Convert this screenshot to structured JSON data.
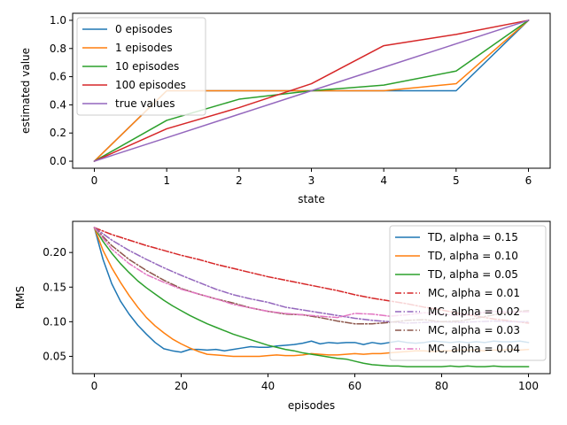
{
  "chart_data": [
    {
      "type": "line",
      "title": "",
      "xlabel": "state",
      "ylabel": "estimated value",
      "xlim": [
        -0.3,
        6.3
      ],
      "ylim": [
        -0.05,
        1.05
      ],
      "xticks": [
        0,
        1,
        2,
        3,
        4,
        5,
        6
      ],
      "xtick_labels": [
        "0",
        "1",
        "2",
        "3",
        "4",
        "5",
        "6"
      ],
      "yticks": [
        0.0,
        0.2,
        0.4,
        0.6,
        0.8,
        1.0
      ],
      "ytick_labels": [
        "0.0",
        "0.2",
        "0.4",
        "0.6",
        "0.8",
        "1.0"
      ],
      "legend_position": "top-left",
      "series": [
        {
          "name": "0 episodes",
          "color": "#1f77b4",
          "dash": "",
          "x": [
            0,
            1,
            2,
            3,
            4,
            5,
            6
          ],
          "y": [
            0,
            0.5,
            0.5,
            0.5,
            0.5,
            0.5,
            1
          ]
        },
        {
          "name": "1 episodes",
          "color": "#ff7f0e",
          "dash": "",
          "x": [
            0,
            1,
            2,
            3,
            4,
            5,
            6
          ],
          "y": [
            0,
            0.5,
            0.5,
            0.5,
            0.5,
            0.55,
            1
          ]
        },
        {
          "name": "10 episodes",
          "color": "#2ca02c",
          "dash": "",
          "x": [
            0,
            1,
            2,
            3,
            4,
            5,
            6
          ],
          "y": [
            0,
            0.29,
            0.44,
            0.5,
            0.54,
            0.64,
            1
          ]
        },
        {
          "name": "100 episodes",
          "color": "#d62728",
          "dash": "",
          "x": [
            0,
            1,
            2,
            3,
            4,
            5,
            6
          ],
          "y": [
            0,
            0.23,
            0.38,
            0.55,
            0.82,
            0.9,
            1
          ]
        },
        {
          "name": "true values",
          "color": "#9467bd",
          "dash": "",
          "x": [
            0,
            1,
            2,
            3,
            4,
            5,
            6
          ],
          "y": [
            0,
            0.1667,
            0.3333,
            0.5,
            0.6667,
            0.8333,
            1
          ]
        }
      ]
    },
    {
      "type": "line",
      "title": "",
      "xlabel": "episodes",
      "ylabel": "RMS",
      "xlim": [
        -5,
        105
      ],
      "ylim": [
        0.025,
        0.245
      ],
      "xticks": [
        0,
        20,
        40,
        60,
        80,
        100
      ],
      "xtick_labels": [
        "0",
        "20",
        "40",
        "60",
        "80",
        "100"
      ],
      "yticks": [
        0.05,
        0.1,
        0.15,
        0.2
      ],
      "ytick_labels": [
        "0.05",
        "0.10",
        "0.15",
        "0.20"
      ],
      "legend_position": "top-right",
      "series": [
        {
          "name": "TD, alpha = 0.15",
          "color": "#1f77b4",
          "dash": "",
          "x": [
            0,
            2,
            4,
            6,
            8,
            10,
            12,
            14,
            16,
            18,
            20,
            22,
            24,
            26,
            28,
            30,
            32,
            34,
            36,
            38,
            40,
            42,
            44,
            46,
            48,
            50,
            52,
            54,
            56,
            58,
            60,
            62,
            64,
            66,
            68,
            70,
            72,
            74,
            76,
            78,
            80,
            82,
            84,
            86,
            88,
            90,
            92,
            94,
            96,
            98,
            100
          ],
          "y": [
            0.236,
            0.19,
            0.155,
            0.13,
            0.111,
            0.095,
            0.082,
            0.07,
            0.061,
            0.058,
            0.056,
            0.06,
            0.06,
            0.059,
            0.06,
            0.058,
            0.06,
            0.062,
            0.064,
            0.063,
            0.063,
            0.065,
            0.066,
            0.067,
            0.069,
            0.072,
            0.068,
            0.07,
            0.069,
            0.07,
            0.07,
            0.067,
            0.07,
            0.068,
            0.07,
            0.072,
            0.07,
            0.069,
            0.07,
            0.072,
            0.071,
            0.07,
            0.071,
            0.07,
            0.071,
            0.07,
            0.072,
            0.071,
            0.071,
            0.072,
            0.07
          ]
        },
        {
          "name": "TD, alpha = 0.10",
          "color": "#ff7f0e",
          "dash": "",
          "x": [
            0,
            2,
            4,
            6,
            8,
            10,
            12,
            14,
            16,
            18,
            20,
            22,
            24,
            26,
            28,
            30,
            32,
            34,
            36,
            38,
            40,
            42,
            44,
            46,
            48,
            50,
            52,
            54,
            56,
            58,
            60,
            62,
            64,
            66,
            68,
            70,
            72,
            74,
            76,
            78,
            80,
            82,
            84,
            86,
            88,
            90,
            92,
            94,
            96,
            98,
            100
          ],
          "y": [
            0.236,
            0.203,
            0.178,
            0.157,
            0.138,
            0.121,
            0.106,
            0.094,
            0.084,
            0.075,
            0.068,
            0.062,
            0.057,
            0.053,
            0.052,
            0.051,
            0.05,
            0.05,
            0.05,
            0.05,
            0.051,
            0.052,
            0.051,
            0.051,
            0.052,
            0.054,
            0.053,
            0.052,
            0.052,
            0.053,
            0.054,
            0.053,
            0.054,
            0.054,
            0.055,
            0.056,
            0.057,
            0.058,
            0.058,
            0.057,
            0.058,
            0.058,
            0.059,
            0.059,
            0.059,
            0.058,
            0.059,
            0.059,
            0.06,
            0.059,
            0.06
          ]
        },
        {
          "name": "TD, alpha = 0.05",
          "color": "#2ca02c",
          "dash": "",
          "x": [
            0,
            2,
            4,
            6,
            8,
            10,
            12,
            14,
            16,
            18,
            20,
            22,
            24,
            26,
            28,
            30,
            32,
            34,
            36,
            38,
            40,
            42,
            44,
            46,
            48,
            50,
            52,
            54,
            56,
            58,
            60,
            62,
            64,
            66,
            68,
            70,
            72,
            74,
            76,
            78,
            80,
            82,
            84,
            86,
            88,
            90,
            92,
            94,
            96,
            98,
            100
          ],
          "y": [
            0.236,
            0.216,
            0.199,
            0.184,
            0.171,
            0.159,
            0.149,
            0.14,
            0.131,
            0.123,
            0.116,
            0.109,
            0.103,
            0.097,
            0.092,
            0.087,
            0.082,
            0.078,
            0.074,
            0.07,
            0.066,
            0.063,
            0.06,
            0.058,
            0.055,
            0.053,
            0.051,
            0.049,
            0.047,
            0.046,
            0.043,
            0.04,
            0.038,
            0.037,
            0.036,
            0.036,
            0.035,
            0.035,
            0.035,
            0.035,
            0.035,
            0.036,
            0.035,
            0.036,
            0.035,
            0.035,
            0.036,
            0.035,
            0.035,
            0.035,
            0.035
          ]
        },
        {
          "name": "MC, alpha = 0.01",
          "color": "#d62728",
          "dash": "7,2.5,1.5,2.5",
          "x": [
            0,
            4,
            8,
            12,
            16,
            20,
            24,
            28,
            32,
            36,
            40,
            44,
            48,
            52,
            56,
            60,
            64,
            68,
            72,
            76,
            80,
            84,
            88,
            92,
            96,
            100
          ],
          "y": [
            0.236,
            0.226,
            0.218,
            0.21,
            0.203,
            0.196,
            0.19,
            0.183,
            0.177,
            0.171,
            0.165,
            0.16,
            0.155,
            0.15,
            0.145,
            0.139,
            0.134,
            0.13,
            0.126,
            0.121,
            0.117,
            0.112,
            0.108,
            0.104,
            0.101,
            0.098
          ]
        },
        {
          "name": "MC, alpha = 0.02",
          "color": "#9467bd",
          "dash": "7,2.5,1.5,2.5",
          "x": [
            0,
            4,
            8,
            12,
            16,
            20,
            24,
            28,
            32,
            36,
            40,
            44,
            48,
            52,
            56,
            60,
            64,
            68,
            72,
            76,
            80,
            84,
            88,
            92,
            96,
            100
          ],
          "y": [
            0.236,
            0.218,
            0.203,
            0.19,
            0.178,
            0.167,
            0.157,
            0.147,
            0.139,
            0.133,
            0.128,
            0.121,
            0.117,
            0.113,
            0.109,
            0.105,
            0.102,
            0.1,
            0.098,
            0.099,
            0.1,
            0.099,
            0.1,
            0.101,
            0.1,
            0.1
          ]
        },
        {
          "name": "MC, alpha = 0.03",
          "color": "#8c564b",
          "dash": "7,2.5,1.5,2.5",
          "x": [
            0,
            4,
            8,
            12,
            16,
            20,
            24,
            28,
            32,
            36,
            40,
            44,
            48,
            52,
            56,
            60,
            64,
            68,
            72,
            76,
            80,
            84,
            88,
            92,
            96,
            100
          ],
          "y": [
            0.236,
            0.21,
            0.19,
            0.174,
            0.16,
            0.148,
            0.14,
            0.133,
            0.127,
            0.12,
            0.115,
            0.111,
            0.11,
            0.106,
            0.101,
            0.097,
            0.097,
            0.099,
            0.102,
            0.103,
            0.1,
            0.101,
            0.105,
            0.11,
            0.114,
            0.116
          ]
        },
        {
          "name": "MC, alpha = 0.04",
          "color": "#e377c2",
          "dash": "7,2.5,1.5,2.5",
          "x": [
            0,
            4,
            8,
            12,
            16,
            20,
            24,
            28,
            32,
            36,
            40,
            44,
            48,
            52,
            56,
            60,
            64,
            68,
            72,
            76,
            80,
            84,
            88,
            92,
            96,
            100
          ],
          "y": [
            0.236,
            0.205,
            0.184,
            0.168,
            0.157,
            0.147,
            0.14,
            0.133,
            0.125,
            0.12,
            0.115,
            0.112,
            0.11,
            0.108,
            0.106,
            0.112,
            0.111,
            0.108,
            0.11,
            0.113,
            0.111,
            0.109,
            0.112,
            0.115,
            0.114,
            0.114
          ]
        }
      ]
    }
  ]
}
